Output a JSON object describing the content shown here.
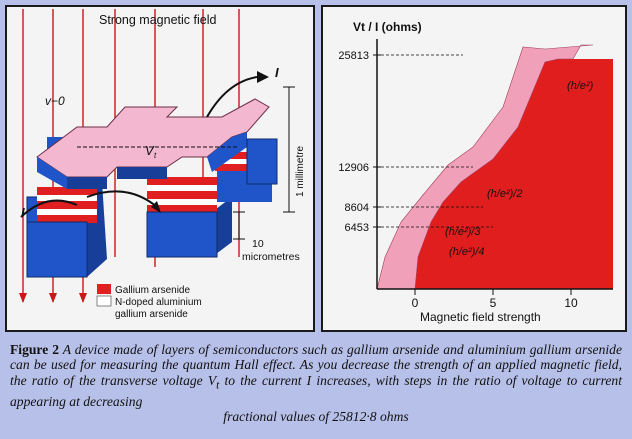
{
  "left_panel": {
    "title": "Strong magnetic field",
    "current_label": "I",
    "current_label_left": "I",
    "voltage_label": "V",
    "voltage_sub": "t",
    "zero_label": "v−0",
    "length_label": "1 millimetre",
    "scale_value": "10",
    "scale_unit": "micrometres",
    "legend": [
      {
        "label": "Gallium arsenide",
        "color": "#e02020"
      },
      {
        "label": "N-doped aluminium",
        "label2": "gallium arsenide",
        "color": "#ffffff"
      }
    ]
  },
  "chart_data": {
    "type": "step-line",
    "ylabel": "Vt / I (ohms)",
    "xlabel": "Magnetic field strength",
    "x_ticks": [
      "0",
      "5",
      "10"
    ],
    "y_ticks": [
      "25813",
      "12906",
      "8604",
      "6453"
    ],
    "y_values": [
      25813,
      12906,
      8604,
      6453
    ],
    "plateaus": [
      {
        "label": "(h/e²)",
        "value": 25813
      },
      {
        "label": "(h/e²)/2",
        "value": 12906
      },
      {
        "label": "(h/e²)/3",
        "value": 8604
      },
      {
        "label": "(h/e²)/4",
        "value": 6453
      }
    ],
    "colors": {
      "fill": "#e01e1e",
      "band": "#f0a0b8"
    }
  },
  "caption": {
    "fig": "Figure 2",
    "text": " A device made of layers of semiconductors such as gallium arsenide and aluminium gallium arsenide can be used for measuring the quantum Hall effect. As you decrease the strength of an applied magnetic field, the ratio of the transverse voltage V",
    "sub": "t",
    "text2": " to the current I increases, with steps in the ratio of voltage to current appearing at decreasing",
    "last": "fractional values of 25812·8 ohms"
  }
}
